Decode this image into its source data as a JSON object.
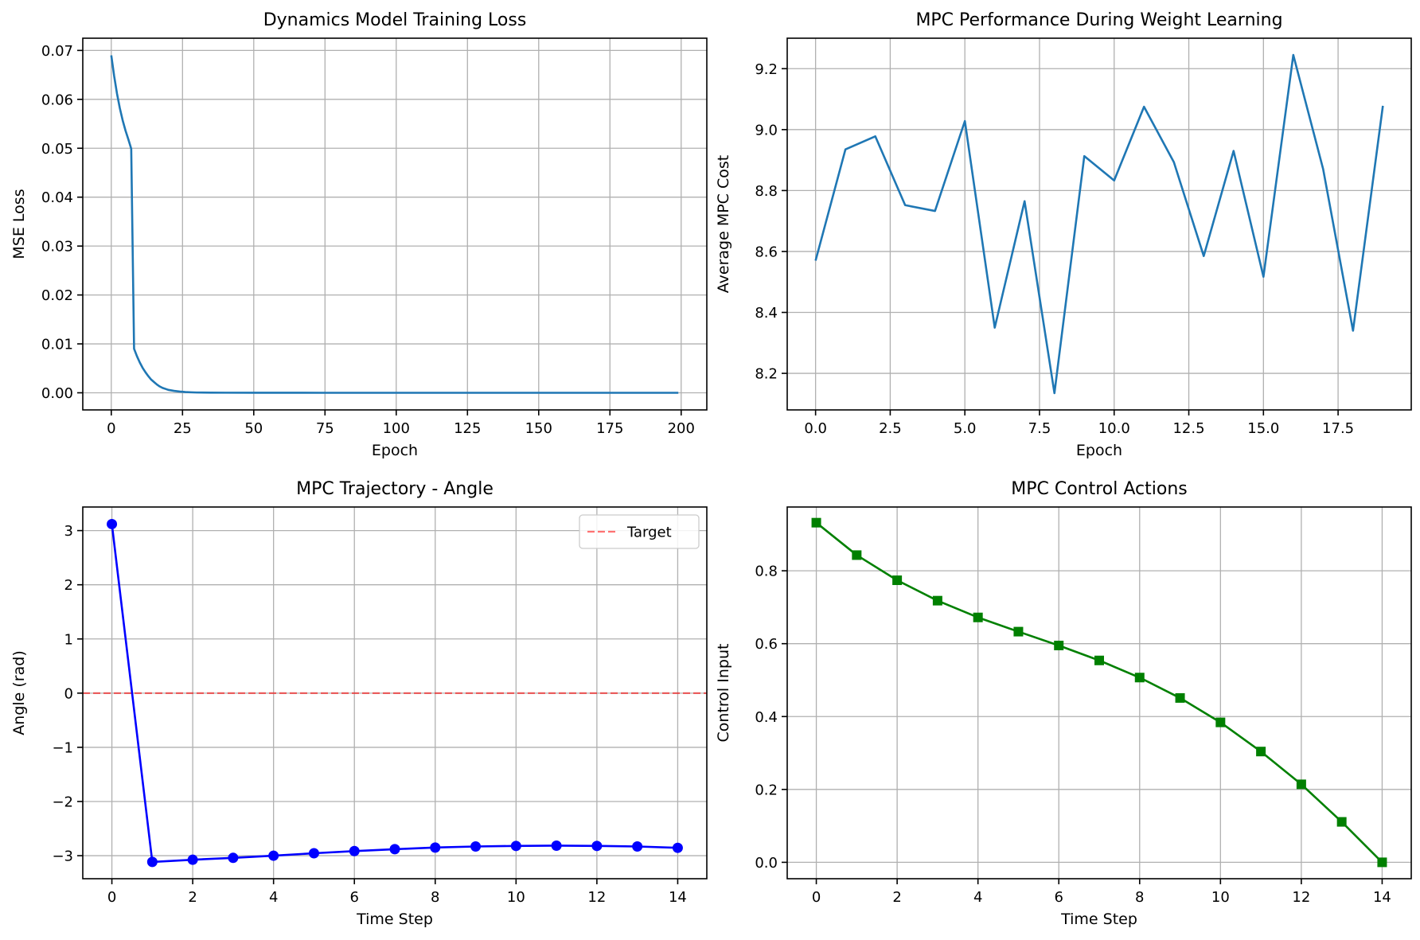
{
  "colors": {
    "grid": "#b0b0b0",
    "axes": "#000000",
    "tab_blue": "#1f77b4",
    "blue": "#0000ff",
    "green": "#008000",
    "target_red": "#ff0000"
  },
  "chart_data": [
    {
      "id": "loss",
      "type": "line",
      "title": "Dynamics Model Training Loss",
      "xlabel": "Epoch",
      "ylabel": "MSE Loss",
      "xlim": [
        -10,
        209
      ],
      "ylim": [
        -0.0035,
        0.0725
      ],
      "xticks": [
        0,
        25,
        50,
        75,
        100,
        125,
        150,
        175,
        200
      ],
      "xticklabels": [
        "0",
        "25",
        "50",
        "75",
        "100",
        "125",
        "150",
        "175",
        "200"
      ],
      "yticks": [
        0,
        0.01,
        0.02,
        0.03,
        0.04,
        0.05,
        0.06,
        0.07
      ],
      "yticklabels": [
        "0.00",
        "0.01",
        "0.02",
        "0.03",
        "0.04",
        "0.05",
        "0.06",
        "0.07"
      ],
      "grid": true,
      "series": [
        {
          "color": "tab_blue",
          "marker": "none",
          "x": [
            0,
            1,
            2,
            3,
            4,
            5,
            6,
            7,
            8,
            9,
            10,
            11,
            12,
            13,
            14,
            15,
            16,
            17,
            18,
            19,
            20,
            22,
            24,
            26,
            28,
            30,
            35,
            40,
            50,
            75,
            100,
            125,
            150,
            175,
            199
          ],
          "y": [
            0.069,
            0.0648,
            0.0612,
            0.0582,
            0.0557,
            0.0536,
            0.0518,
            0.0499,
            0.009,
            0.0075,
            0.0062,
            0.0051,
            0.0042,
            0.0034,
            0.0027,
            0.0022,
            0.0017,
            0.0013,
            0.001,
            0.0008,
            0.0006,
            0.0004,
            0.00025,
            0.00015,
            0.0001,
            6e-05,
            3e-05,
            2e-05,
            1e-05,
            0,
            0,
            0,
            0,
            0,
            0
          ]
        }
      ]
    },
    {
      "id": "mpc-perf",
      "type": "line",
      "title": "MPC Performance During Weight Learning",
      "xlabel": "Epoch",
      "ylabel": "Average MPC Cost",
      "xlim": [
        -0.95,
        19.95
      ],
      "ylim": [
        8.08,
        9.3
      ],
      "xticks": [
        0,
        2.5,
        5,
        7.5,
        10,
        12.5,
        15,
        17.5
      ],
      "xticklabels": [
        "0.0",
        "2.5",
        "5.0",
        "7.5",
        "10.0",
        "12.5",
        "15.0",
        "17.5"
      ],
      "yticks": [
        8.2,
        8.4,
        8.6,
        8.8,
        9.0,
        9.2
      ],
      "yticklabels": [
        "8.2",
        "8.4",
        "8.6",
        "8.8",
        "9.0",
        "9.2"
      ],
      "grid": true,
      "series": [
        {
          "color": "tab_blue",
          "marker": "none",
          "x": [
            0,
            1,
            2,
            3,
            4,
            5,
            6,
            7,
            8,
            9,
            10,
            11,
            12,
            13,
            14,
            15,
            16,
            17,
            18,
            19
          ],
          "y": [
            8.57,
            8.935,
            8.978,
            8.752,
            8.733,
            9.028,
            8.35,
            8.765,
            8.135,
            8.913,
            8.833,
            9.075,
            8.893,
            8.585,
            8.93,
            8.517,
            9.245,
            8.87,
            8.34,
            9.078
          ]
        }
      ]
    },
    {
      "id": "trajectory",
      "type": "line",
      "title": "MPC Trajectory - Angle",
      "xlabel": "Time Step",
      "ylabel": "Angle (rad)",
      "xlim": [
        -0.72,
        14.72
      ],
      "ylim": [
        -3.425,
        3.435
      ],
      "xticks": [
        0,
        2,
        4,
        6,
        8,
        10,
        12,
        14
      ],
      "xticklabels": [
        "0",
        "2",
        "4",
        "6",
        "8",
        "10",
        "12",
        "14"
      ],
      "yticks": [
        -3,
        -2,
        -1,
        0,
        1,
        2,
        3
      ],
      "yticklabels": [
        "−3",
        "−2",
        "−1",
        "0",
        "1",
        "2",
        "3"
      ],
      "grid": true,
      "legend": {
        "position": "top-right",
        "entries": [
          "Target"
        ]
      },
      "hline": {
        "y": 0,
        "color": "target_red",
        "style": "dashed",
        "label": "Target"
      },
      "series": [
        {
          "color": "blue",
          "marker": "circle",
          "x": [
            0,
            1,
            2,
            3,
            4,
            5,
            6,
            7,
            8,
            9,
            10,
            11,
            12,
            13,
            14
          ],
          "y": [
            3.12,
            -3.115,
            -3.075,
            -3.04,
            -3.0,
            -2.955,
            -2.915,
            -2.88,
            -2.85,
            -2.83,
            -2.82,
            -2.815,
            -2.82,
            -2.83,
            -2.855
          ]
        }
      ]
    },
    {
      "id": "controls",
      "type": "line",
      "title": "MPC Control Actions",
      "xlabel": "Time Step",
      "ylabel": "Control Input",
      "xlim": [
        -0.72,
        14.72
      ],
      "ylim": [
        -0.045,
        0.975
      ],
      "xticks": [
        0,
        2,
        4,
        6,
        8,
        10,
        12,
        14
      ],
      "xticklabels": [
        "0",
        "2",
        "4",
        "6",
        "8",
        "10",
        "12",
        "14"
      ],
      "yticks": [
        0,
        0.2,
        0.4,
        0.6,
        0.8
      ],
      "yticklabels": [
        "0.0",
        "0.2",
        "0.4",
        "0.6",
        "0.8"
      ],
      "grid": true,
      "series": [
        {
          "color": "green",
          "marker": "square",
          "x": [
            0,
            1,
            2,
            3,
            4,
            5,
            6,
            7,
            8,
            9,
            10,
            11,
            12,
            13,
            14
          ],
          "y": [
            0.932,
            0.843,
            0.774,
            0.718,
            0.672,
            0.633,
            0.595,
            0.554,
            0.507,
            0.451,
            0.384,
            0.304,
            0.214,
            0.111,
            0.0
          ]
        }
      ]
    }
  ]
}
